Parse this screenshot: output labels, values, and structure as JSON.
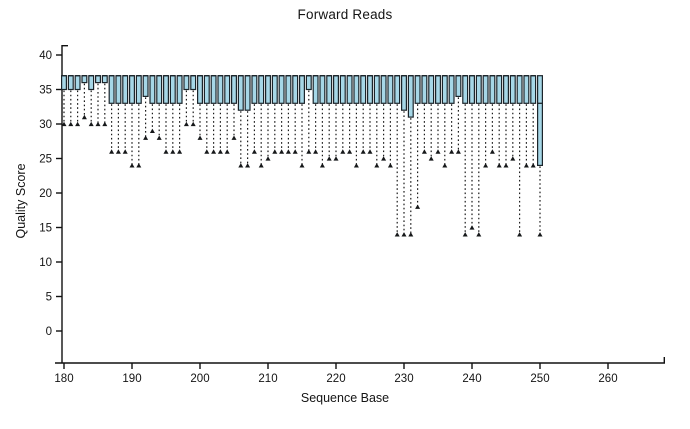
{
  "title": "Forward Reads",
  "chart_data": {
    "type": "boxplot",
    "title": "Forward Reads",
    "xlabel": "Sequence Base",
    "ylabel": "Quality Score",
    "x_ticks": [
      180,
      190,
      200,
      210,
      220,
      230,
      240,
      250,
      260
    ],
    "y_ticks": [
      0,
      5,
      10,
      15,
      20,
      25,
      30,
      35,
      40
    ],
    "x_axis_range": [
      178.5,
      268.5
    ],
    "y_axis_range": [
      -4.6,
      41.4
    ],
    "grid": "off",
    "legend": "none",
    "box_fill_color": "#a6d7e7",
    "box_edge_color": "#1c252b",
    "whisker_color": "#1c1c1c",
    "axis_color": "#111111",
    "boxes": [
      {
        "base": 180,
        "q1": 35,
        "median": 37,
        "q3": 37,
        "min": 30
      },
      {
        "base": 181,
        "q1": 35,
        "median": 37,
        "q3": 37,
        "min": 30
      },
      {
        "base": 182,
        "q1": 35,
        "median": 37,
        "q3": 37,
        "min": 30
      },
      {
        "base": 183,
        "q1": 36,
        "median": 37,
        "q3": 37,
        "min": 31
      },
      {
        "base": 184,
        "q1": 35,
        "median": 37,
        "q3": 37,
        "min": 30
      },
      {
        "base": 185,
        "q1": 36,
        "median": 37,
        "q3": 37,
        "min": 30
      },
      {
        "base": 186,
        "q1": 36,
        "median": 37,
        "q3": 37,
        "min": 30
      },
      {
        "base": 187,
        "q1": 33,
        "median": 37,
        "q3": 37,
        "min": 26
      },
      {
        "base": 188,
        "q1": 33,
        "median": 37,
        "q3": 37,
        "min": 26
      },
      {
        "base": 189,
        "q1": 33,
        "median": 37,
        "q3": 37,
        "min": 26
      },
      {
        "base": 190,
        "q1": 33,
        "median": 37,
        "q3": 37,
        "min": 24
      },
      {
        "base": 191,
        "q1": 33,
        "median": 37,
        "q3": 37,
        "min": 24
      },
      {
        "base": 192,
        "q1": 34,
        "median": 37,
        "q3": 37,
        "min": 28
      },
      {
        "base": 193,
        "q1": 33,
        "median": 37,
        "q3": 37,
        "min": 29
      },
      {
        "base": 194,
        "q1": 33,
        "median": 37,
        "q3": 37,
        "min": 28
      },
      {
        "base": 195,
        "q1": 33,
        "median": 37,
        "q3": 37,
        "min": 26
      },
      {
        "base": 196,
        "q1": 33,
        "median": 37,
        "q3": 37,
        "min": 26
      },
      {
        "base": 197,
        "q1": 33,
        "median": 37,
        "q3": 37,
        "min": 26
      },
      {
        "base": 198,
        "q1": 35,
        "median": 37,
        "q3": 37,
        "min": 30
      },
      {
        "base": 199,
        "q1": 35,
        "median": 37,
        "q3": 37,
        "min": 30
      },
      {
        "base": 200,
        "q1": 33,
        "median": 37,
        "q3": 37,
        "min": 28
      },
      {
        "base": 201,
        "q1": 33,
        "median": 37,
        "q3": 37,
        "min": 26
      },
      {
        "base": 202,
        "q1": 33,
        "median": 37,
        "q3": 37,
        "min": 26
      },
      {
        "base": 203,
        "q1": 33,
        "median": 37,
        "q3": 37,
        "min": 26
      },
      {
        "base": 204,
        "q1": 33,
        "median": 37,
        "q3": 37,
        "min": 26
      },
      {
        "base": 205,
        "q1": 33,
        "median": 37,
        "q3": 37,
        "min": 28
      },
      {
        "base": 206,
        "q1": 32,
        "median": 37,
        "q3": 37,
        "min": 24
      },
      {
        "base": 207,
        "q1": 32,
        "median": 37,
        "q3": 37,
        "min": 24
      },
      {
        "base": 208,
        "q1": 33,
        "median": 37,
        "q3": 37,
        "min": 26
      },
      {
        "base": 209,
        "q1": 33,
        "median": 37,
        "q3": 37,
        "min": 24
      },
      {
        "base": 210,
        "q1": 33,
        "median": 37,
        "q3": 37,
        "min": 25
      },
      {
        "base": 211,
        "q1": 33,
        "median": 37,
        "q3": 37,
        "min": 26
      },
      {
        "base": 212,
        "q1": 33,
        "median": 37,
        "q3": 37,
        "min": 26
      },
      {
        "base": 213,
        "q1": 33,
        "median": 37,
        "q3": 37,
        "min": 26
      },
      {
        "base": 214,
        "q1": 33,
        "median": 37,
        "q3": 37,
        "min": 26
      },
      {
        "base": 215,
        "q1": 33,
        "median": 37,
        "q3": 37,
        "min": 24
      },
      {
        "base": 216,
        "q1": 35,
        "median": 37,
        "q3": 37,
        "min": 26
      },
      {
        "base": 217,
        "q1": 33,
        "median": 37,
        "q3": 37,
        "min": 26
      },
      {
        "base": 218,
        "q1": 33,
        "median": 37,
        "q3": 37,
        "min": 24
      },
      {
        "base": 219,
        "q1": 33,
        "median": 37,
        "q3": 37,
        "min": 25
      },
      {
        "base": 220,
        "q1": 33,
        "median": 37,
        "q3": 37,
        "min": 25
      },
      {
        "base": 221,
        "q1": 33,
        "median": 37,
        "q3": 37,
        "min": 26
      },
      {
        "base": 222,
        "q1": 33,
        "median": 37,
        "q3": 37,
        "min": 26
      },
      {
        "base": 223,
        "q1": 33,
        "median": 37,
        "q3": 37,
        "min": 24
      },
      {
        "base": 224,
        "q1": 33,
        "median": 37,
        "q3": 37,
        "min": 26
      },
      {
        "base": 225,
        "q1": 33,
        "median": 37,
        "q3": 37,
        "min": 26
      },
      {
        "base": 226,
        "q1": 33,
        "median": 37,
        "q3": 37,
        "min": 24
      },
      {
        "base": 227,
        "q1": 33,
        "median": 37,
        "q3": 37,
        "min": 25
      },
      {
        "base": 228,
        "q1": 33,
        "median": 37,
        "q3": 37,
        "min": 24
      },
      {
        "base": 229,
        "q1": 33,
        "median": 37,
        "q3": 37,
        "min": 14
      },
      {
        "base": 230,
        "q1": 32,
        "median": 37,
        "q3": 37,
        "min": 14
      },
      {
        "base": 231,
        "q1": 31,
        "median": 37,
        "q3": 37,
        "min": 14
      },
      {
        "base": 232,
        "q1": 33,
        "median": 37,
        "q3": 37,
        "min": 18
      },
      {
        "base": 233,
        "q1": 33,
        "median": 37,
        "q3": 37,
        "min": 26
      },
      {
        "base": 234,
        "q1": 33,
        "median": 37,
        "q3": 37,
        "min": 25
      },
      {
        "base": 235,
        "q1": 33,
        "median": 37,
        "q3": 37,
        "min": 26
      },
      {
        "base": 236,
        "q1": 33,
        "median": 37,
        "q3": 37,
        "min": 24
      },
      {
        "base": 237,
        "q1": 33,
        "median": 37,
        "q3": 37,
        "min": 26
      },
      {
        "base": 238,
        "q1": 34,
        "median": 37,
        "q3": 37,
        "min": 26
      },
      {
        "base": 239,
        "q1": 33,
        "median": 37,
        "q3": 37,
        "min": 14
      },
      {
        "base": 240,
        "q1": 33,
        "median": 37,
        "q3": 37,
        "min": 15
      },
      {
        "base": 241,
        "q1": 33,
        "median": 37,
        "q3": 37,
        "min": 14
      },
      {
        "base": 242,
        "q1": 33,
        "median": 37,
        "q3": 37,
        "min": 24
      },
      {
        "base": 243,
        "q1": 33,
        "median": 37,
        "q3": 37,
        "min": 26
      },
      {
        "base": 244,
        "q1": 33,
        "median": 37,
        "q3": 37,
        "min": 24
      },
      {
        "base": 245,
        "q1": 33,
        "median": 37,
        "q3": 37,
        "min": 24
      },
      {
        "base": 246,
        "q1": 33,
        "median": 37,
        "q3": 37,
        "min": 25
      },
      {
        "base": 247,
        "q1": 33,
        "median": 37,
        "q3": 37,
        "min": 14
      },
      {
        "base": 248,
        "q1": 33,
        "median": 37,
        "q3": 37,
        "min": 24
      },
      {
        "base": 249,
        "q1": 33,
        "median": 37,
        "q3": 37,
        "min": 24
      },
      {
        "base": 250,
        "q1": 24,
        "median": 33,
        "q3": 37,
        "min": 14
      }
    ]
  }
}
